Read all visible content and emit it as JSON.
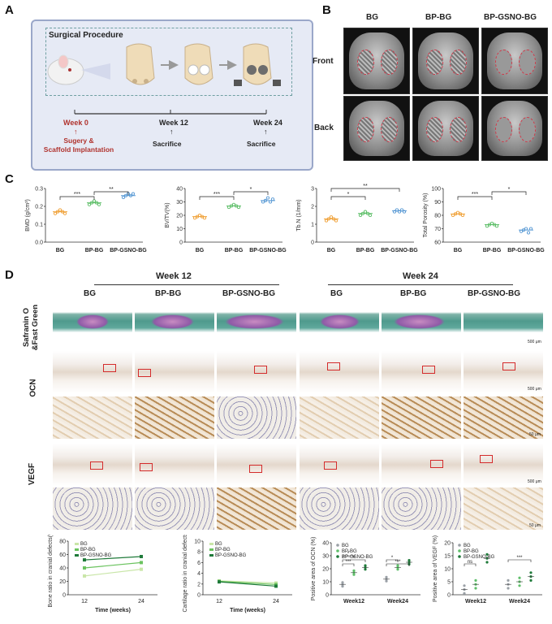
{
  "panels": {
    "A": "A",
    "B": "B",
    "C": "C",
    "D": "D"
  },
  "panelA": {
    "title": "Surgical Procedure",
    "timeline": [
      {
        "label": "Week 0",
        "sub": "Sugery &\nScaffold Implantation",
        "color": "#b0332e"
      },
      {
        "label": "Week 12",
        "sub": "Sacrifice",
        "color": "#222222"
      },
      {
        "label": "Week 24",
        "sub": "Sacrifice",
        "color": "#222222"
      }
    ],
    "sub_week0_line1": "Sugery &",
    "sub_week0_line2": "Scaffold Implantation"
  },
  "panelB": {
    "columns": [
      "BG",
      "BP-BG",
      "BP-GSNO-BG"
    ],
    "rows": [
      "Front",
      "Back"
    ]
  },
  "panelC": {
    "xticks": [
      "BG",
      "BP-BG",
      "BP-GSNO-BG"
    ],
    "colors": {
      "BG": "#f0a23a",
      "BP-BG": "#5fbf6a",
      "BP-GSNO-BG": "#5b9bd5"
    }
  },
  "panelD": {
    "week12": "Week 12",
    "week24": "Week 24",
    "columns": [
      "BG",
      "BP-BG",
      "BP-GSNO-BG",
      "BG",
      "BP-BG",
      "BP-GSNO-BG"
    ],
    "rowlabels": {
      "saf1": "Safranin O",
      "saf2": "&Fast Green",
      "ocn": "OCN",
      "vegf": "VEGF"
    },
    "scale500": "500 μm",
    "scale50": "50 μm"
  },
  "chart_data": [
    {
      "type": "scatter",
      "ylabel": "BMD (g/cm³)",
      "ylim": [
        0.0,
        0.3
      ],
      "yticks": [
        "0.0",
        "0.1",
        "0.2",
        "0.3"
      ],
      "categories": [
        "BG",
        "BP-BG",
        "BP-GSNO-BG"
      ],
      "means": [
        0.17,
        0.22,
        0.26
      ],
      "points": [
        [
          0.16,
          0.17,
          0.18,
          0.17,
          0.16
        ],
        [
          0.21,
          0.22,
          0.23,
          0.22,
          0.21
        ],
        [
          0.25,
          0.26,
          0.27,
          0.26,
          0.27
        ]
      ],
      "sig": [
        {
          "from": 0,
          "to": 1,
          "label": "***"
        },
        {
          "from": 1,
          "to": 2,
          "label": "**"
        }
      ]
    },
    {
      "type": "scatter",
      "ylabel": "BV/TV(%)",
      "ylim": [
        0,
        40
      ],
      "yticks": [
        "0",
        "10",
        "20",
        "30",
        "40"
      ],
      "categories": [
        "BG",
        "BP-BG",
        "BP-GSNO-BG"
      ],
      "means": [
        19,
        27,
        31
      ],
      "points": [
        [
          18,
          19,
          20,
          19,
          18
        ],
        [
          26,
          27,
          28,
          27,
          26
        ],
        [
          30,
          31,
          33,
          30,
          32
        ]
      ],
      "sig": [
        {
          "from": 0,
          "to": 1,
          "label": "***"
        },
        {
          "from": 1,
          "to": 2,
          "label": "*"
        }
      ]
    },
    {
      "type": "scatter",
      "ylabel": "Tb.N (1/mm)",
      "ylim": [
        0,
        3
      ],
      "yticks": [
        "0",
        "1",
        "2",
        "3"
      ],
      "categories": [
        "BG",
        "BP-BG",
        "BP-GSNO-BG"
      ],
      "means": [
        1.3,
        1.6,
        1.75
      ],
      "points": [
        [
          1.2,
          1.3,
          1.4,
          1.3,
          1.2
        ],
        [
          1.5,
          1.6,
          1.7,
          1.6,
          1.5
        ],
        [
          1.7,
          1.8,
          1.7,
          1.8,
          1.7
        ]
      ],
      "sig": [
        {
          "from": 0,
          "to": 1,
          "label": "*"
        },
        {
          "from": 0,
          "to": 2,
          "label": "**"
        }
      ]
    },
    {
      "type": "scatter",
      "ylabel": "Total Porosity (%)",
      "ylim": [
        60,
        100
      ],
      "yticks": [
        "60",
        "70",
        "80",
        "90",
        "100"
      ],
      "categories": [
        "BG",
        "BP-BG",
        "BP-GSNO-BG"
      ],
      "means": [
        81,
        73,
        69
      ],
      "points": [
        [
          80,
          81,
          82,
          81,
          80
        ],
        [
          72,
          73,
          74,
          73,
          72
        ],
        [
          68,
          69,
          70,
          67,
          70
        ]
      ],
      "sig": [
        {
          "from": 0,
          "to": 1,
          "label": "***"
        },
        {
          "from": 1,
          "to": 2,
          "label": "*"
        }
      ]
    },
    {
      "type": "line",
      "ylabel": "Bone ratio in cranial defects(%)",
      "xlabel": "Time (weeks)",
      "x": [
        12,
        24
      ],
      "ylim": [
        0,
        80
      ],
      "yticks": [
        "0",
        "20",
        "40",
        "60",
        "80"
      ],
      "series": [
        {
          "name": "BG",
          "values": [
            28,
            38
          ]
        },
        {
          "name": "BP-BG",
          "values": [
            40,
            48
          ]
        },
        {
          "name": "BP-GSNO-BG",
          "values": [
            52,
            57
          ]
        }
      ]
    },
    {
      "type": "line",
      "ylabel": "Cartilage ratio in cranial defects(%)",
      "xlabel": "Time (weeks)",
      "x": [
        12,
        24
      ],
      "ylim": [
        0,
        10
      ],
      "yticks": [
        "0",
        "2",
        "4",
        "6",
        "8",
        "10"
      ],
      "series": [
        {
          "name": "BG",
          "values": [
            2.6,
            2.2
          ]
        },
        {
          "name": "BP-BG",
          "values": [
            2.5,
            1.9
          ]
        },
        {
          "name": "BP-GSNO-BG",
          "values": [
            2.4,
            1.6
          ]
        }
      ]
    },
    {
      "type": "scatter",
      "ylabel": "Positive area of OCN (%)",
      "ylim": [
        0,
        40
      ],
      "yticks": [
        "0",
        "10",
        "20",
        "30",
        "40"
      ],
      "categories": [
        "Week12",
        "Week24"
      ],
      "groups": [
        {
          "name": "BG",
          "values": [
            8,
            12
          ]
        },
        {
          "name": "BP-BG",
          "values": [
            17,
            21
          ]
        },
        {
          "name": "BP-GSNO-BG",
          "values": [
            21,
            25
          ]
        }
      ],
      "sig": [
        {
          "label": "***"
        },
        {
          "label": "*"
        },
        {
          "label": "*"
        },
        {
          "label": "***"
        },
        {
          "label": "*"
        }
      ]
    },
    {
      "type": "scatter",
      "ylabel": "Positive area of VEGF (%)",
      "ylim": [
        0,
        20
      ],
      "yticks": [
        "0",
        "5",
        "10",
        "15",
        "20"
      ],
      "categories": [
        "Week12",
        "Week24"
      ],
      "groups": [
        {
          "name": "BG",
          "values": [
            2,
            4
          ]
        },
        {
          "name": "BP-BG",
          "values": [
            4,
            5
          ]
        },
        {
          "name": "BP-GSNO-BG",
          "values": [
            14,
            7
          ]
        }
      ],
      "sig": [
        {
          "label": "ns"
        },
        {
          "label": "***"
        }
      ]
    }
  ]
}
